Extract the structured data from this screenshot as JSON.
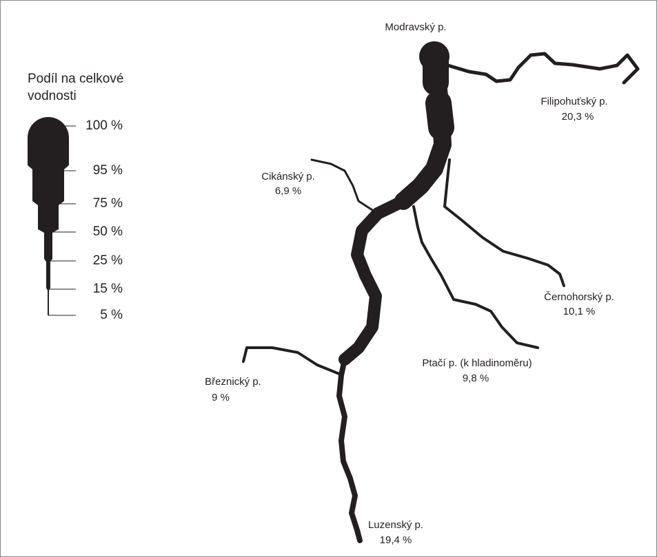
{
  "legend": {
    "title_lines": [
      "Podíl na celkové",
      "vodnosti"
    ],
    "ticks": [
      "100 %",
      "95 %",
      "75 %",
      "50 %",
      "25 %",
      "15 %",
      "5 %"
    ]
  },
  "streams": [
    {
      "name": "Modravský p."
    },
    {
      "name": "Filipohuťský p.",
      "share": "20,3 %"
    },
    {
      "name": "Cikánský p.",
      "share": "6,9 %"
    },
    {
      "name": "Černohorský p.",
      "share": "10,1 %"
    },
    {
      "name": "Ptačí p. (k hladinoměru)",
      "share": "9,8 %"
    },
    {
      "name": "Březnický p.",
      "share": "9 %"
    },
    {
      "name": "Luzenský p.",
      "share": "19,4 %"
    }
  ]
}
